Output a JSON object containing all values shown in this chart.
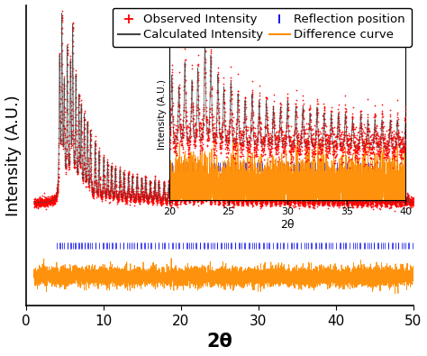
{
  "xlabel": "2θ",
  "ylabel": "Intensity (A.U.)",
  "inset_xlabel": "2θ",
  "inset_ylabel": "Intensity (A.U.)",
  "observed_color": "#FF0000",
  "calculated_color": "#444444",
  "reflection_color": "#0000EE",
  "difference_color": "#FF8C00",
  "background_color": "#FFFFFF",
  "legend_observed": "Observed Intensity",
  "legend_calculated": "Calculated Intensity",
  "legend_reflection": "Reflection position",
  "legend_difference": "Difference curve",
  "tick_fontsize": 11,
  "label_fontsize": 13,
  "xlabel_fontsize": 15,
  "legend_fontsize": 9.5
}
